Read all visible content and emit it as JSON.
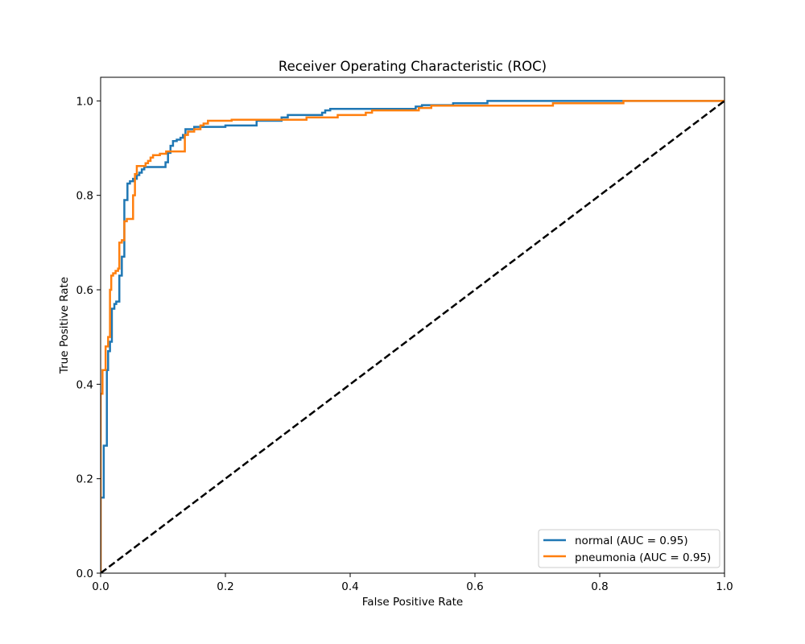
{
  "chart_data": {
    "type": "line",
    "title": "Receiver Operating Characteristic (ROC)",
    "xlabel": "False Positive Rate",
    "ylabel": "True Positive Rate",
    "xlim": [
      0.0,
      1.0
    ],
    "ylim": [
      0.0,
      1.05
    ],
    "x_ticks": [
      "0.0",
      "0.2",
      "0.4",
      "0.6",
      "0.8",
      "1.0"
    ],
    "y_ticks": [
      "0.0",
      "0.2",
      "0.4",
      "0.6",
      "0.8",
      "1.0"
    ],
    "grid": false,
    "legend_position": "lower-right",
    "series": [
      {
        "name": "normal (AUC = 0.95)",
        "color": "#1f77b4",
        "points": [
          [
            0.0,
            0.0
          ],
          [
            0.0,
            0.16
          ],
          [
            0.005,
            0.16
          ],
          [
            0.005,
            0.27
          ],
          [
            0.01,
            0.27
          ],
          [
            0.01,
            0.43
          ],
          [
            0.012,
            0.43
          ],
          [
            0.012,
            0.47
          ],
          [
            0.015,
            0.47
          ],
          [
            0.015,
            0.49
          ],
          [
            0.018,
            0.49
          ],
          [
            0.018,
            0.56
          ],
          [
            0.022,
            0.56
          ],
          [
            0.022,
            0.57
          ],
          [
            0.025,
            0.57
          ],
          [
            0.025,
            0.575
          ],
          [
            0.03,
            0.575
          ],
          [
            0.03,
            0.63
          ],
          [
            0.034,
            0.63
          ],
          [
            0.034,
            0.67
          ],
          [
            0.038,
            0.67
          ],
          [
            0.038,
            0.79
          ],
          [
            0.043,
            0.79
          ],
          [
            0.043,
            0.825
          ],
          [
            0.047,
            0.825
          ],
          [
            0.047,
            0.83
          ],
          [
            0.052,
            0.83
          ],
          [
            0.052,
            0.835
          ],
          [
            0.058,
            0.835
          ],
          [
            0.058,
            0.843
          ],
          [
            0.062,
            0.843
          ],
          [
            0.062,
            0.848
          ],
          [
            0.066,
            0.848
          ],
          [
            0.066,
            0.855
          ],
          [
            0.07,
            0.855
          ],
          [
            0.07,
            0.86
          ],
          [
            0.104,
            0.86
          ],
          [
            0.104,
            0.87
          ],
          [
            0.108,
            0.87
          ],
          [
            0.108,
            0.89
          ],
          [
            0.112,
            0.89
          ],
          [
            0.112,
            0.905
          ],
          [
            0.116,
            0.905
          ],
          [
            0.116,
            0.915
          ],
          [
            0.122,
            0.915
          ],
          [
            0.122,
            0.918
          ],
          [
            0.128,
            0.918
          ],
          [
            0.128,
            0.922
          ],
          [
            0.132,
            0.922
          ],
          [
            0.132,
            0.928
          ],
          [
            0.136,
            0.928
          ],
          [
            0.136,
            0.94
          ],
          [
            0.15,
            0.94
          ],
          [
            0.15,
            0.945
          ],
          [
            0.2,
            0.945
          ],
          [
            0.2,
            0.948
          ],
          [
            0.25,
            0.948
          ],
          [
            0.25,
            0.958
          ],
          [
            0.29,
            0.958
          ],
          [
            0.29,
            0.965
          ],
          [
            0.3,
            0.965
          ],
          [
            0.3,
            0.97
          ],
          [
            0.355,
            0.97
          ],
          [
            0.355,
            0.975
          ],
          [
            0.36,
            0.975
          ],
          [
            0.36,
            0.98
          ],
          [
            0.368,
            0.98
          ],
          [
            0.368,
            0.983
          ],
          [
            0.43,
            0.983
          ],
          [
            0.505,
            0.983
          ],
          [
            0.505,
            0.988
          ],
          [
            0.515,
            0.988
          ],
          [
            0.515,
            0.991
          ],
          [
            0.565,
            0.991
          ],
          [
            0.565,
            0.995
          ],
          [
            0.62,
            0.995
          ],
          [
            0.62,
            1.0
          ],
          [
            1.0,
            1.0
          ]
        ]
      },
      {
        "name": "pneumonia (AUC = 0.95)",
        "color": "#ff7f0e",
        "points": [
          [
            0.0,
            0.0
          ],
          [
            0.0,
            0.38
          ],
          [
            0.003,
            0.38
          ],
          [
            0.003,
            0.43
          ],
          [
            0.008,
            0.43
          ],
          [
            0.008,
            0.48
          ],
          [
            0.012,
            0.48
          ],
          [
            0.012,
            0.5
          ],
          [
            0.015,
            0.5
          ],
          [
            0.015,
            0.6
          ],
          [
            0.017,
            0.6
          ],
          [
            0.017,
            0.63
          ],
          [
            0.02,
            0.63
          ],
          [
            0.02,
            0.635
          ],
          [
            0.024,
            0.635
          ],
          [
            0.024,
            0.64
          ],
          [
            0.028,
            0.64
          ],
          [
            0.028,
            0.645
          ],
          [
            0.03,
            0.645
          ],
          [
            0.03,
            0.7
          ],
          [
            0.034,
            0.7
          ],
          [
            0.034,
            0.705
          ],
          [
            0.038,
            0.705
          ],
          [
            0.038,
            0.745
          ],
          [
            0.042,
            0.745
          ],
          [
            0.042,
            0.75
          ],
          [
            0.052,
            0.75
          ],
          [
            0.052,
            0.8
          ],
          [
            0.055,
            0.8
          ],
          [
            0.055,
            0.845
          ],
          [
            0.058,
            0.845
          ],
          [
            0.058,
            0.862
          ],
          [
            0.072,
            0.862
          ],
          [
            0.072,
            0.868
          ],
          [
            0.076,
            0.868
          ],
          [
            0.076,
            0.873
          ],
          [
            0.08,
            0.873
          ],
          [
            0.08,
            0.88
          ],
          [
            0.084,
            0.88
          ],
          [
            0.084,
            0.885
          ],
          [
            0.095,
            0.885
          ],
          [
            0.095,
            0.888
          ],
          [
            0.105,
            0.888
          ],
          [
            0.105,
            0.893
          ],
          [
            0.135,
            0.893
          ],
          [
            0.135,
            0.928
          ],
          [
            0.14,
            0.928
          ],
          [
            0.14,
            0.935
          ],
          [
            0.15,
            0.935
          ],
          [
            0.15,
            0.94
          ],
          [
            0.16,
            0.94
          ],
          [
            0.16,
            0.948
          ],
          [
            0.165,
            0.948
          ],
          [
            0.165,
            0.952
          ],
          [
            0.172,
            0.952
          ],
          [
            0.172,
            0.958
          ],
          [
            0.21,
            0.958
          ],
          [
            0.21,
            0.96
          ],
          [
            0.33,
            0.96
          ],
          [
            0.33,
            0.965
          ],
          [
            0.38,
            0.965
          ],
          [
            0.38,
            0.97
          ],
          [
            0.425,
            0.97
          ],
          [
            0.425,
            0.975
          ],
          [
            0.435,
            0.975
          ],
          [
            0.435,
            0.98
          ],
          [
            0.51,
            0.98
          ],
          [
            0.51,
            0.985
          ],
          [
            0.53,
            0.985
          ],
          [
            0.53,
            0.99
          ],
          [
            0.725,
            0.99
          ],
          [
            0.725,
            0.995
          ],
          [
            0.838,
            0.995
          ],
          [
            0.838,
            1.0
          ],
          [
            1.0,
            1.0
          ]
        ]
      },
      {
        "name": "",
        "color": "#000000",
        "dashed": true,
        "points": [
          [
            0.0,
            0.0
          ],
          [
            1.0,
            1.0
          ]
        ]
      }
    ]
  }
}
